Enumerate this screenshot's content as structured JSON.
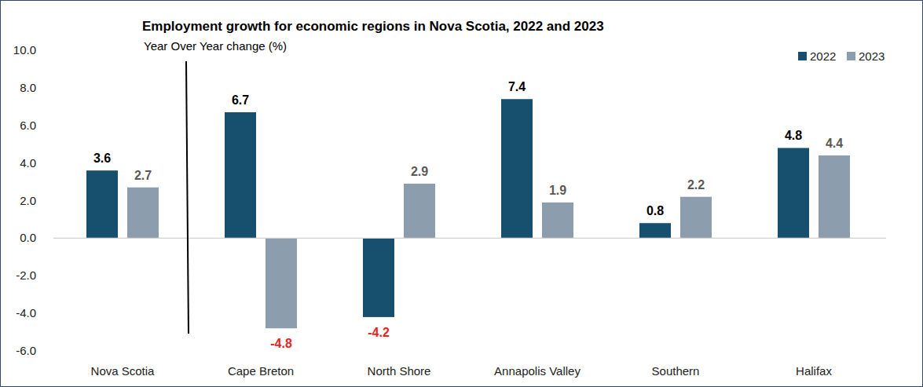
{
  "chart_data": {
    "type": "bar",
    "title": "Employment growth for economic regions in Nova Scotia, 2022 and 2023",
    "subtitle": "Year Over Year change (%)",
    "categories": [
      "Nova Scotia",
      "Cape Breton",
      "North Shore",
      "Annapolis Valley",
      "Southern",
      "Halifax"
    ],
    "series": [
      {
        "name": "2022",
        "color": "#17506e",
        "values": [
          3.6,
          6.7,
          -4.2,
          7.4,
          0.8,
          4.8
        ]
      },
      {
        "name": "2023",
        "color": "#8c9dad",
        "values": [
          2.7,
          -4.8,
          2.9,
          1.9,
          2.2,
          4.4
        ]
      }
    ],
    "ylim": [
      -6,
      10
    ],
    "yticks": [
      {
        "value": -6,
        "label": "-6.0"
      },
      {
        "value": -4,
        "label": "-4.0"
      },
      {
        "value": -2,
        "label": "-2.0"
      },
      {
        "value": 0,
        "label": "0.0"
      },
      {
        "value": 2,
        "label": "2.0"
      },
      {
        "value": 4,
        "label": "4.0"
      },
      {
        "value": 6,
        "label": "6.0"
      },
      {
        "value": 8,
        "label": "8.0"
      },
      {
        "value": 10,
        "label": "10.0"
      }
    ],
    "grid": false,
    "legend": "top-right",
    "data_labels": true
  }
}
